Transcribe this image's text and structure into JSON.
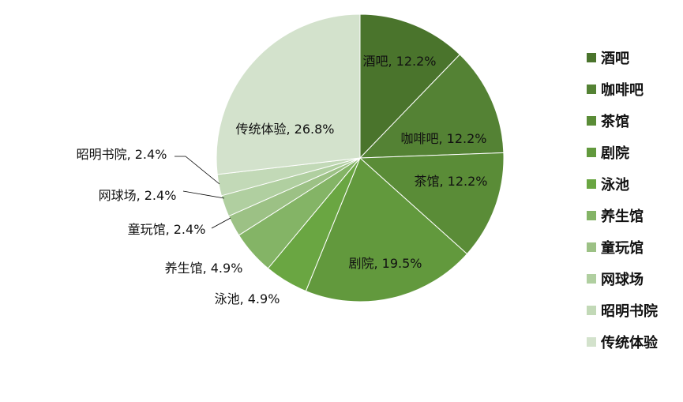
{
  "chart_data": {
    "type": "pie",
    "categories": [
      "酒吧",
      "咖啡吧",
      "茶馆",
      "剧院",
      "泳池",
      "养生馆",
      "童玩馆",
      "网球场",
      "昭明书院",
      "传统体验"
    ],
    "values": [
      12.2,
      12.2,
      12.2,
      19.5,
      4.9,
      4.9,
      2.4,
      2.4,
      2.4,
      26.8
    ],
    "data_labels": [
      "酒吧, 12.2%",
      "咖啡吧, 12.2%",
      "茶馆, 12.2%",
      "剧院, 19.5%",
      "泳池, 4.9%",
      "养生馆, 4.9%",
      "童玩馆, 2.4%",
      "网球场, 2.4%",
      "昭明书院, 2.4%",
      "传统体验, 26.8%"
    ],
    "colors": [
      "#4a742c",
      "#548234",
      "#5a8c37",
      "#62993d",
      "#6aa642",
      "#84b466",
      "#9cc185",
      "#b0cfa0",
      "#c2d9b7",
      "#d3e2cc"
    ],
    "legend_position": "right"
  }
}
